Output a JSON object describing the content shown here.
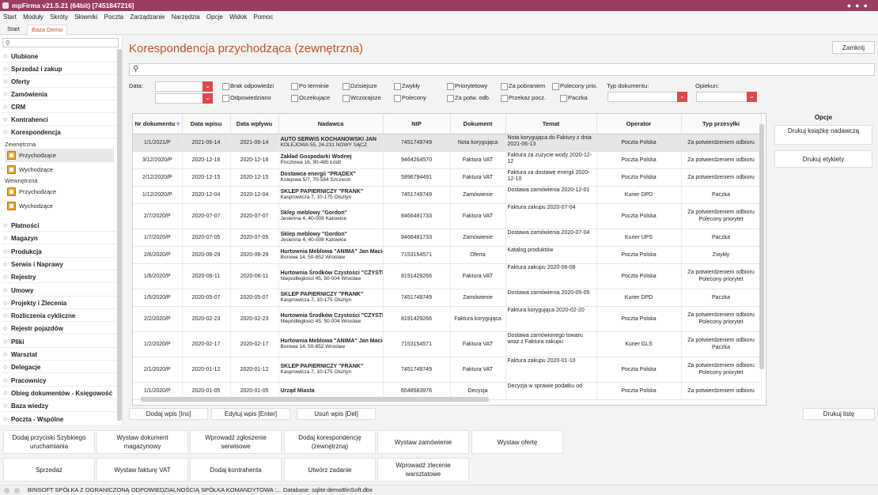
{
  "app": {
    "title": "mpFirma v21.5.21 (64bit) [7451847216]"
  },
  "menu": [
    "Start",
    "Moduły",
    "Skróty",
    "Słowniki",
    "Poczta",
    "Zarządzanie",
    "Narzędzia",
    "Opcje",
    "Widok",
    "Pomoc"
  ],
  "tabs": {
    "start": "Start",
    "baza": "Baza Demo"
  },
  "sidebar": {
    "search_icon": "search-icon",
    "items_top": [
      "Ulubione",
      "Sprzedaż i zakup",
      "Oferty",
      "Zamówienia",
      "CRM",
      "Kontrahenci",
      "Korespondencja"
    ],
    "zewnetrzna": "Zewnętrzna",
    "wewnetrzna": "Wewnętrzna",
    "przychodzace": "Przychodzące",
    "wychodzace": "Wychodzące",
    "items_bottom": [
      "Płatności",
      "Magazyn",
      "Produkcja",
      "Serwis i Naprawy",
      "Rejestry",
      "Umowy",
      "Projekty i Zlecenia",
      "Rozliczenia cykliczne",
      "Rejestr pojazdów",
      "Pliki",
      "Warsztat",
      "Delegacje",
      "Pracownicy",
      "Obieg dokumentów - Księgowość",
      "Baza wiedzy",
      "Poczta - Wspólne"
    ]
  },
  "main": {
    "title": "Korespondencja przychodząca (zewnętrzna)",
    "close": "Zamknij"
  },
  "filters": {
    "data": "Data:",
    "checks_row1": [
      "Brak odpowiedzi",
      "Po terminie",
      "Dzisiejsze",
      "Zwykły",
      "Priorytetowy",
      "Za pobraniem",
      "Polecony prio."
    ],
    "checks_row2": [
      "Odpowiedziano",
      "Oczekujące",
      "Wczorajsze",
      "Polecony",
      "Za potw. odb.",
      "Przekaz pocz.",
      "Paczka"
    ],
    "typ": "Typ dokumentu:",
    "opiekun": "Opiekun:"
  },
  "table": {
    "headers": [
      "Nr dokumentu",
      "Data wpisu",
      "Data wpływu",
      "Nadawca",
      "NIP",
      "Dokument",
      "Temat",
      "Operator",
      "Typ przesyłki"
    ],
    "rows": [
      {
        "nr": "1/1/2021/P",
        "wpis": "2021-06-14",
        "wplyw": "2021-06-14",
        "nad": "AUTO SERWIS KOCHANOWSKI JAN",
        "adr": "KOLEJOWA 55, 24-231 NOWY SĄCZ",
        "nip": "7451749749",
        "dok": "Nota korygująca",
        "tem": "Nota korygująca do Faktury z dnia 2021-06-13",
        "op": "Poczta Polska",
        "typ": "Za potwierdzeniem odbioru"
      },
      {
        "nr": "3/12/2020/P",
        "wpis": "2020-12-16",
        "wplyw": "2020-12-16",
        "nad": "Zakład Gospodarki Wodnej",
        "adr": "Pocztowa 16, 90-485 Łódź",
        "nip": "9464264570",
        "dok": "Faktura VAT",
        "tem": "Faktura za zużycie wody 2020-12-12",
        "op": "Poczta Polska",
        "typ": "Za potwierdzeniem odbioru"
      },
      {
        "nr": "2/12/2020/P",
        "wpis": "2020-12-15",
        "wplyw": "2020-12-15",
        "nad": "Dostawca energii \"PRĄDEX\"",
        "adr": "Kolejowa 5/7, 70-584 Szczecin",
        "nip": "5896794491",
        "dok": "Faktura VAT",
        "tem": "Faktura za dostawę energii 2020-12-10",
        "op": "Poczta Polska",
        "typ": "Za potwierdzeniem odbioru"
      },
      {
        "nr": "1/12/2020/P",
        "wpis": "2020-12-04",
        "wplyw": "2020-12-04",
        "nad": "SKLEP PAPIERNICZY \"FRANK\"",
        "adr": "Kasprowicza 7, 10-175 Olsztyn",
        "nip": "7451749749",
        "dok": "Zamówienie",
        "tem": "Dostawa zamówienia 2020-12-01",
        "op": "Kurier DPD",
        "typ": "Paczka"
      },
      {
        "nr": "2/7/2020/P",
        "wpis": "2020-07-07",
        "wplyw": "2020-07-07",
        "nad": "Sklep meblowy \"Gordon\"",
        "adr": "Jesienna 4, 40-008 Katowice",
        "nip": "8466481733",
        "dok": "Faktura VAT",
        "tem": "Faktura zakupu 2020-07-04",
        "op": "Poczta Polska",
        "typ": "Za potwierdzeniem odbioru Polecony priorytet"
      },
      {
        "nr": "1/7/2020/P",
        "wpis": "2020-07-05",
        "wplyw": "2020-07-05",
        "nad": "Sklep meblowy \"Gordon\"",
        "adr": "Jesienna 4, 40-008 Katowice",
        "nip": "8466481733",
        "dok": "Zamówienie",
        "tem": "Dostawa zamówienia 2020-07-04",
        "op": "Kurier UPS",
        "typ": "Paczka"
      },
      {
        "nr": "2/6/2020/P",
        "wpis": "2020-06-29",
        "wplyw": "2020-06-29",
        "nad": "Hurtownia Meblowa \"ANIMA\" Jan Macioch",
        "adr": "Borowa 14, 50-852 Wrocław",
        "nip": "7153154571",
        "dok": "Oferta",
        "tem": "Katalog produktów",
        "op": "Poczta Polska",
        "typ": "Zwykły"
      },
      {
        "nr": "1/6/2020/P",
        "wpis": "2020-06-11",
        "wplyw": "2020-06-11",
        "nad": "Hurtownia Środków Czystości \"CZYSTEK\"",
        "adr": "Niepodległości 45, 50-004 Wrocław",
        "nip": "8191429266",
        "dok": "Faktura VAT",
        "tem": "Faktura zakupu 2020-06-08",
        "op": "Poczta Polska",
        "typ": "Za potwierdzeniem odbioru Polecony priorytet"
      },
      {
        "nr": "1/5/2020/P",
        "wpis": "2020-05-07",
        "wplyw": "2020-05-07",
        "nad": "SKLEP PAPIERNICZY \"FRANK\"",
        "adr": "Kasprowicza 7, 10-175 Olsztyn",
        "nip": "7451749749",
        "dok": "Zamówienie",
        "tem": "Dostawa zamówienia 2020-05-05",
        "op": "Kurier DPD",
        "typ": "Paczka"
      },
      {
        "nr": "2/2/2020/P",
        "wpis": "2020-02-23",
        "wplyw": "2020-02-23",
        "nad": "Hurtownia Środków Czystości \"CZYSTEK\"",
        "adr": "Niepodległości 45, 50-004 Wrocław",
        "nip": "8191429266",
        "dok": "Faktura korygująca",
        "tem": "Faktura korygująca 2020-02-20",
        "op": "Poczta Polska",
        "typ": "Za potwierdzeniem odbioru Polecony priorytet"
      },
      {
        "nr": "1/2/2020/P",
        "wpis": "2020-02-17",
        "wplyw": "2020-02-17",
        "nad": "Hurtownia Meblowa \"ANIMA\" Jan Macioch",
        "adr": "Borowa 14, 50-852 Wrocław",
        "nip": "7153154571",
        "dok": "Faktura VAT",
        "tem": "Dostawa zamówionego towaru wraz z Faktura zakupu",
        "op": "Kurier GLS",
        "typ": "Za potwierdzeniem odbioru Paczka"
      },
      {
        "nr": "2/1/2020/P",
        "wpis": "2020-01-12",
        "wplyw": "2020-01-12",
        "nad": "SKLEP PAPIERNICZY \"FRANK\"",
        "adr": "Kasprowicza 7, 10-175 Olsztyn",
        "nip": "7451749749",
        "dok": "Faktura VAT",
        "tem": "Faktura zakupu 2020-01-10",
        "op": "Poczta Polska",
        "typ": "Za potwierdzeniem odbioru Polecony priorytet"
      },
      {
        "nr": "1/1/2020/P",
        "wpis": "2020-01-05",
        "wplyw": "2020-01-05",
        "nad": "Urząd Miasta",
        "adr": "",
        "nip": "6548583976",
        "dok": "Decyzja",
        "tem": "Decyzja w sprawie podatku od",
        "op": "Poczta Polska",
        "typ": "Za potwierdzeniem odbioru"
      }
    ]
  },
  "opcje": {
    "header": "Opcje",
    "btn1": "Drukuj książkę nadawczą",
    "btn2": "Drukuj etykiety"
  },
  "bottom": {
    "add": "Dodaj wpis [Ins]",
    "edit": "Edytuj wpis [Enter]",
    "del": "Usuń wpis [Del]",
    "print": "Drukuj listę"
  },
  "quick": [
    "Dodaj przyciski Szybkiego uruchamiania",
    "Wystaw dokument magazynowy",
    "Wprowadź zgłoszenie serwisowe",
    "Dodaj korespondencję (zewnętrzną)",
    "Wystaw zamówienie",
    "Wystaw ofertę",
    "Sprzedaż",
    "Wystaw fakturę VAT",
    "Dodaj kontrahenta",
    "Utwórz zadanie",
    "Wprowadź zlecenie warsztatowe"
  ],
  "status": "BINSOFT SPÓŁKA Z OGRANICZONĄ ODPOWIEDZIALNOŚCIĄ SPÓŁKA KOMANDYTOWA :... Database: sqlite:demoBinSoft.dbx"
}
